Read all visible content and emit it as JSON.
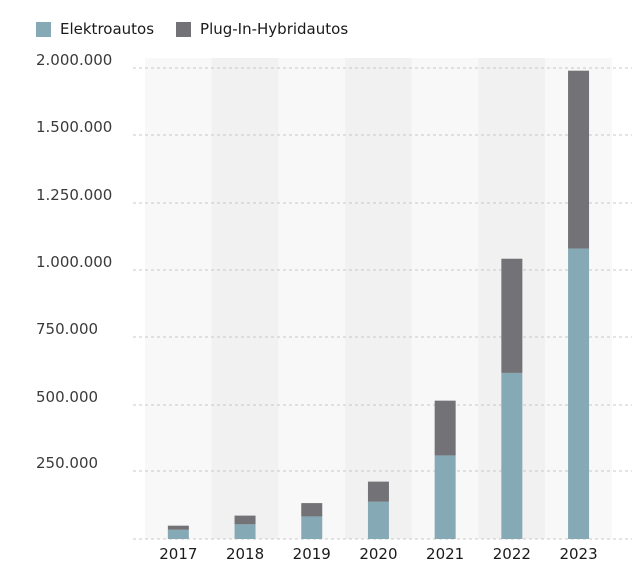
{
  "chart_data": {
    "type": "bar",
    "stacked": true,
    "categories": [
      "2017",
      "2018",
      "2019",
      "2020",
      "2021",
      "2022",
      "2023"
    ],
    "series": [
      {
        "name": "Elektroautos",
        "color": "#86aab5",
        "values": [
          34000,
          54000,
          83000,
          137000,
          309000,
          618000,
          1080000
        ]
      },
      {
        "name": "Plug-In-Hybridautos",
        "color": "#737276",
        "values": [
          15000,
          32000,
          49000,
          74000,
          207000,
          424000,
          900000
        ]
      }
    ],
    "y_ticks": [
      {
        "value": 250000,
        "label": "250.000"
      },
      {
        "value": 500000,
        "label": "500.000"
      },
      {
        "value": 750000,
        "label": "750.000"
      },
      {
        "value": 1000000,
        "label": "1.000.000"
      },
      {
        "value": 1250000,
        "label": "1.250.000"
      },
      {
        "value": 1500000,
        "label": "1.500.000"
      },
      {
        "value": 2000000,
        "label": "2.000.000"
      }
    ],
    "ylim": [
      0,
      2000000
    ],
    "grid": true,
    "legend_position": "top-left",
    "column_band_colors": [
      "#f8f8f8",
      "#f1f1f1"
    ],
    "grid_color": "#c8c8c8"
  }
}
